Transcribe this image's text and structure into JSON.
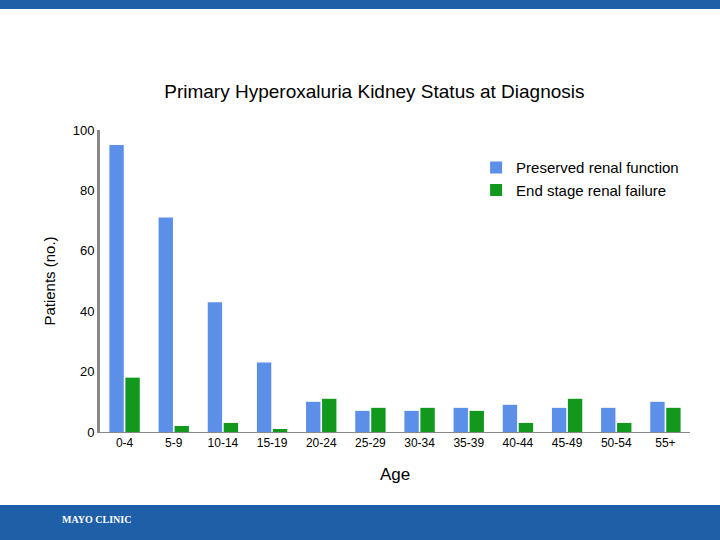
{
  "chart_data": {
    "type": "bar",
    "title": "Primary Hyperoxaluria Kidney Status at Diagnosis",
    "x_label": "Age",
    "y_label": "Patients (no.)",
    "footer": "MAYO CLINIC",
    "categories": [
      "0-4",
      "5-9",
      "10-14",
      "15-19",
      "20-24",
      "25-29",
      "30-34",
      "35-39",
      "40-44",
      "45-49",
      "50-54",
      "55+"
    ],
    "series": [
      {
        "name": "Preserved renal function",
        "color": "#5b8fe8",
        "values": [
          95,
          71,
          43,
          23,
          10,
          7,
          7,
          8,
          9,
          8,
          8,
          10
        ]
      },
      {
        "name": "End stage renal failure",
        "color": "#12991d",
        "values": [
          18,
          2,
          3,
          1,
          11,
          8,
          8,
          7,
          3,
          11,
          3,
          8
        ]
      }
    ],
    "ylim": [
      0,
      100
    ],
    "yticks": [
      0,
      20,
      40,
      60,
      80,
      100
    ],
    "grid": false,
    "legend": "upper right"
  }
}
